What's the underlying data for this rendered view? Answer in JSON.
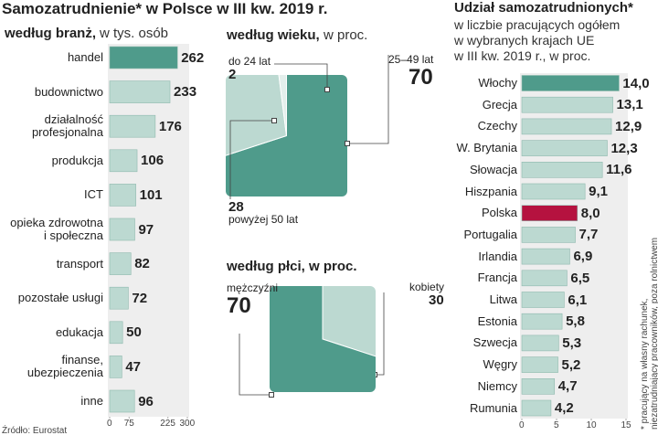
{
  "title": "Samozatrudnienie* w Polsce w III kw. 2019 r.",
  "source": "Źródło: Eurostat",
  "footnote": [
    "* pracujący na własny rachunek,",
    "niezatrudniający pracowników, poza rolnictwem"
  ],
  "chart_data": [
    {
      "type": "bar",
      "title": "według branż,",
      "unit": "w tys. osób",
      "categories": [
        "handel",
        "budownictwo",
        "działalność profesjonalna",
        "produkcja",
        "ICT",
        "opieka zdrowotna i społeczna",
        "transport",
        "pozostałe usługi",
        "edukacja",
        "finanse, ubezpieczenia",
        "inne"
      ],
      "values": [
        262,
        233,
        176,
        106,
        101,
        97,
        82,
        72,
        50,
        47,
        96
      ],
      "colors": [
        "#4f9b8b",
        "#bcd9d1",
        "#bcd9d1",
        "#bcd9d1",
        "#bcd9d1",
        "#bcd9d1",
        "#bcd9d1",
        "#bcd9d1",
        "#bcd9d1",
        "#bcd9d1",
        "#bcd9d1"
      ],
      "xlim": [
        0,
        300
      ],
      "xticks": [
        0,
        75,
        225,
        300
      ]
    },
    {
      "type": "pie",
      "title": "według wieku,",
      "unit": "w proc.",
      "categories": [
        "25–49 lat",
        "powyżej 50 lat",
        "do 24 lat"
      ],
      "values": [
        70,
        28,
        2
      ],
      "colors": [
        "#4f9b8b",
        "#bcd9d1",
        "#e4efec"
      ]
    },
    {
      "type": "pie",
      "title": "według płci, w proc.",
      "categories": [
        "kobiety",
        "mężczyźni"
      ],
      "values": [
        30,
        70
      ],
      "colors": [
        "#bcd9d1",
        "#4f9b8b"
      ]
    },
    {
      "type": "bar",
      "title": "Udział samozatrudnionych*",
      "subtitle": [
        "w liczbie pracujących ogółem",
        "w wybranych krajach UE",
        "w III kw. 2019 r., w proc."
      ],
      "categories": [
        "Włochy",
        "Grecja",
        "Czechy",
        "W. Brytania",
        "Słowacja",
        "Hiszpania",
        "Polska",
        "Portugalia",
        "Irlandia",
        "Francja",
        "Litwa",
        "Estonia",
        "Szwecja",
        "Węgry",
        "Niemcy",
        "Rumunia"
      ],
      "values": [
        14.0,
        13.1,
        12.9,
        12.3,
        11.6,
        9.1,
        8.0,
        7.7,
        6.9,
        6.5,
        6.1,
        5.8,
        5.3,
        5.2,
        4.7,
        4.2
      ],
      "value_labels": [
        "14,0",
        "13,1",
        "12,9",
        "12,3",
        "11,6",
        "9,1",
        "8,0",
        "7,7",
        "6,9",
        "6,5",
        "6,1",
        "5,8",
        "5,3",
        "5,2",
        "4,7",
        "4,2"
      ],
      "colors": [
        "#4f9b8b",
        "#bcd9d1",
        "#bcd9d1",
        "#bcd9d1",
        "#bcd9d1",
        "#bcd9d1",
        "#b5123f",
        "#bcd9d1",
        "#bcd9d1",
        "#bcd9d1",
        "#bcd9d1",
        "#bcd9d1",
        "#bcd9d1",
        "#bcd9d1",
        "#bcd9d1",
        "#bcd9d1"
      ],
      "xlim": [
        0,
        15
      ],
      "xticks": [
        0,
        5,
        10,
        15
      ]
    }
  ]
}
